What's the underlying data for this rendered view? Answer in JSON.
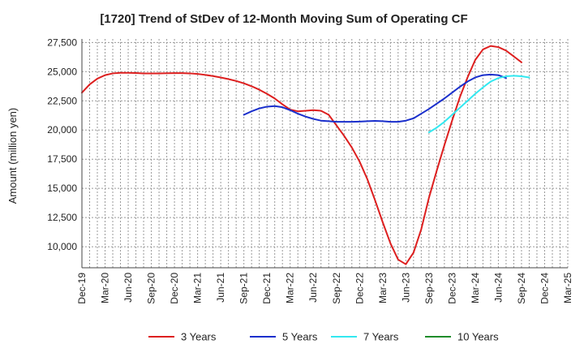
{
  "chart_data": {
    "type": "line",
    "title": "[1720]  Trend of StDev of 12-Month Moving Sum of Operating CF",
    "xlabel": "",
    "ylabel": "Amount (million yen)",
    "ylim": [
      8200,
      27800
    ],
    "yticks": [
      10000,
      12500,
      15000,
      17500,
      20000,
      22500,
      25000,
      27500
    ],
    "ytick_labels": [
      "10,000",
      "12,500",
      "15,000",
      "17,500",
      "20,000",
      "22,500",
      "25,000",
      "27,500"
    ],
    "x_categories": [
      "Dec-19",
      "Jan-20",
      "Feb-20",
      "Mar-20",
      "Apr-20",
      "May-20",
      "Jun-20",
      "Jul-20",
      "Aug-20",
      "Sep-20",
      "Oct-20",
      "Nov-20",
      "Dec-20",
      "Jan-21",
      "Feb-21",
      "Mar-21",
      "Apr-21",
      "May-21",
      "Jun-21",
      "Jul-21",
      "Aug-21",
      "Sep-21",
      "Oct-21",
      "Nov-21",
      "Dec-21",
      "Jan-22",
      "Feb-22",
      "Mar-22",
      "Apr-22",
      "May-22",
      "Jun-22",
      "Jul-22",
      "Aug-22",
      "Sep-22",
      "Oct-22",
      "Nov-22",
      "Dec-22",
      "Jan-23",
      "Feb-23",
      "Mar-23",
      "Apr-23",
      "May-23",
      "Jun-23",
      "Jul-23",
      "Aug-23",
      "Sep-23",
      "Oct-23",
      "Nov-23",
      "Dec-23",
      "Jan-24",
      "Feb-24",
      "Mar-24",
      "Apr-24",
      "May-24",
      "Jun-24",
      "Jul-24",
      "Aug-24",
      "Sep-24",
      "Oct-24",
      "Nov-24",
      "Dec-24",
      "Jan-25",
      "Feb-25",
      "Mar-25"
    ],
    "xtick_labels": [
      "Dec-19",
      "Mar-20",
      "Jun-20",
      "Sep-20",
      "Dec-20",
      "Mar-21",
      "Jun-21",
      "Sep-21",
      "Dec-21",
      "Mar-22",
      "Jun-22",
      "Sep-22",
      "Dec-22",
      "Mar-23",
      "Jun-23",
      "Sep-23",
      "Dec-23",
      "Mar-24",
      "Jun-24",
      "Sep-24",
      "Dec-24",
      "Mar-25"
    ],
    "grid": true,
    "legend_position": "bottom",
    "series": [
      {
        "name": "3 Years",
        "color": "#dd1f1f",
        "start": "Dec-19",
        "values": [
          23200,
          23900,
          24400,
          24700,
          24850,
          24900,
          24900,
          24880,
          24850,
          24850,
          24850,
          24860,
          24870,
          24870,
          24850,
          24800,
          24720,
          24620,
          24500,
          24360,
          24200,
          24000,
          23750,
          23450,
          23100,
          22700,
          22200,
          21750,
          21600,
          21650,
          21700,
          21650,
          21300,
          20400,
          19500,
          18500,
          17300,
          15800,
          14000,
          12100,
          10300,
          8900,
          8500,
          9500,
          11500,
          14200,
          16500,
          18700,
          20800,
          22800,
          24500,
          26000,
          26900,
          27200,
          27100,
          26800,
          26300,
          25800
        ]
      },
      {
        "name": "5 Years",
        "color": "#1a2fcc",
        "start": "Sep-21",
        "values": [
          21300,
          21600,
          21850,
          22000,
          22050,
          21950,
          21700,
          21400,
          21150,
          20950,
          20800,
          20750,
          20700,
          20700,
          20700,
          20720,
          20750,
          20780,
          20750,
          20700,
          20700,
          20800,
          21000,
          21400,
          21800,
          22250,
          22700,
          23200,
          23700,
          24150,
          24500,
          24700,
          24750,
          24700,
          24450
        ]
      },
      {
        "name": "7 Years",
        "color": "#33e8f0",
        "start": "Sep-23",
        "values": [
          19800,
          20200,
          20700,
          21300,
          21900,
          22500,
          23100,
          23650,
          24150,
          24450,
          24600,
          24650,
          24600,
          24500
        ]
      },
      {
        "name": "10 Years",
        "color": "#1f8c2a",
        "start": "Sep-23",
        "values": []
      }
    ]
  }
}
